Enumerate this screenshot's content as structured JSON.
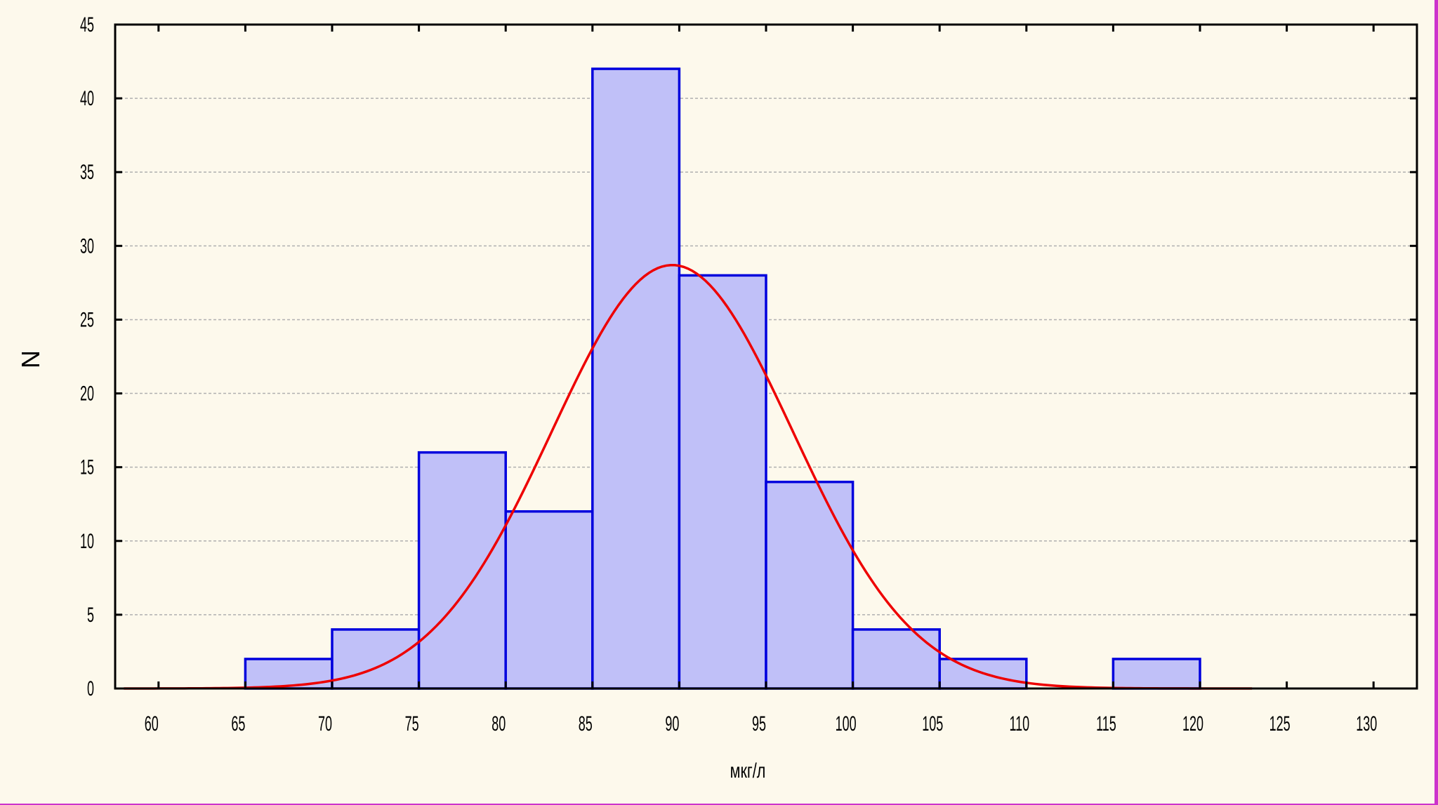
{
  "chart_data": {
    "type": "bar",
    "subtype": "histogram-with-normal-fit",
    "title": "",
    "xlabel": "мкг/л",
    "ylabel": "N",
    "xlim": [
      57.5,
      132.5
    ],
    "ylim": [
      0,
      45
    ],
    "x_ticks": [
      60,
      65,
      70,
      75,
      80,
      85,
      90,
      95,
      100,
      105,
      110,
      115,
      120,
      125,
      130
    ],
    "y_ticks": [
      0,
      5,
      10,
      15,
      20,
      25,
      30,
      35,
      40,
      45
    ],
    "bins": [
      {
        "from": 65,
        "to": 70,
        "count": 2
      },
      {
        "from": 70,
        "to": 75,
        "count": 4
      },
      {
        "from": 75,
        "to": 80,
        "count": 16
      },
      {
        "from": 80,
        "to": 85,
        "count": 12
      },
      {
        "from": 85,
        "to": 90,
        "count": 42
      },
      {
        "from": 90,
        "to": 95,
        "count": 28
      },
      {
        "from": 95,
        "to": 100,
        "count": 14
      },
      {
        "from": 100,
        "to": 105,
        "count": 4
      },
      {
        "from": 105,
        "to": 110,
        "count": 2
      },
      {
        "from": 110,
        "to": 115,
        "count": 0
      },
      {
        "from": 115,
        "to": 120,
        "count": 2
      }
    ],
    "normal_fit": {
      "mean": 89.6,
      "sd": 6.95,
      "peak": 28.7,
      "x_range": [
        58,
        123
      ]
    },
    "grid": "horizontal dashed",
    "colors": {
      "bar_fill": "#c0c0f8",
      "bar_stroke": "#0000dd",
      "curve": "#ee0000",
      "grid": "#b0b0b0",
      "background": "#fdf9ec"
    }
  }
}
